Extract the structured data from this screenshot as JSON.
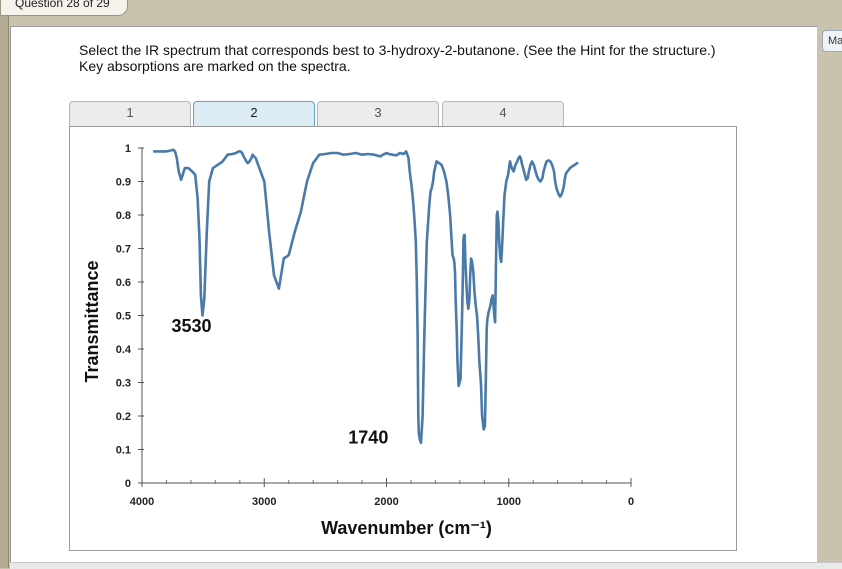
{
  "question_tab": {
    "label": "Question 28 of 29"
  },
  "side_button": {
    "label": "Ma"
  },
  "prompt": {
    "line1": "Select the IR spectrum that corresponds best to 3-hydroxy-2-butanone. (See the Hint for the structure.)",
    "line2": "Key absorptions are marked on the spectra."
  },
  "tabs": [
    {
      "label": "1",
      "active": false
    },
    {
      "label": "2",
      "active": true
    },
    {
      "label": "3",
      "active": false
    },
    {
      "label": "4",
      "active": false
    }
  ],
  "colors": {
    "trace": "#4a7aa8",
    "active_tab": "#dcecf5"
  },
  "chart_data": {
    "type": "line",
    "title": "",
    "xlabel": "Wavenumber (cm⁻¹)",
    "ylabel": "Transmittance",
    "xlim": [
      4000,
      0
    ],
    "ylim": [
      0,
      1
    ],
    "x_ticks": [
      "4000",
      "3000",
      "2000",
      "1000",
      "0"
    ],
    "y_ticks": [
      "0",
      "0.1",
      "0.2",
      "0.3",
      "0.4",
      "0.5",
      "0.6",
      "0.7",
      "0.8",
      "0.9",
      "1"
    ],
    "annotations": [
      {
        "text": "3530",
        "x": 3530,
        "y": 0.51
      },
      {
        "text": "1740",
        "x": 1740,
        "y": 0.13
      }
    ],
    "series": [
      {
        "x": [
          3900,
          3850,
          3800,
          3770,
          3745,
          3730,
          3715,
          3700,
          3680,
          3650,
          3620,
          3590,
          3565,
          3545,
          3530,
          3518,
          3505,
          3490,
          3470,
          3450,
          3420,
          3380,
          3340,
          3300,
          3260,
          3230,
          3210,
          3195,
          3180,
          3170,
          3160,
          3150,
          3135,
          3120,
          3105,
          3095,
          3085,
          3070,
          3060,
          3045,
          3030,
          3000,
          2960,
          2920,
          2880,
          2840,
          2800,
          2750,
          2700,
          2650,
          2600,
          2550,
          2500,
          2450,
          2400,
          2350,
          2300,
          2250,
          2200,
          2150,
          2100,
          2070,
          2050,
          2030,
          2015,
          2000,
          1980,
          1950,
          1920,
          1890,
          1860,
          1840,
          1830,
          1820,
          1810,
          1800,
          1790,
          1780,
          1770,
          1760,
          1752,
          1746,
          1742,
          1740,
          1736,
          1728,
          1718,
          1705,
          1690,
          1670,
          1650,
          1640,
          1630,
          1620,
          1610,
          1590,
          1570,
          1550,
          1530,
          1510,
          1495,
          1480,
          1470,
          1460,
          1450,
          1445,
          1440,
          1435,
          1425,
          1420,
          1410,
          1395,
          1385,
          1375,
          1370,
          1365,
          1360,
          1355,
          1345,
          1338,
          1330,
          1322,
          1315,
          1308,
          1300,
          1290,
          1280,
          1270,
          1260,
          1250,
          1240,
          1228,
          1218,
          1205,
          1195,
          1188,
          1180,
          1175,
          1165,
          1150,
          1140,
          1132,
          1125,
          1118,
          1112,
          1105,
          1098,
          1092,
          1085,
          1078,
          1072,
          1068,
          1062,
          1055,
          1045,
          1035,
          1020,
          1005,
          990,
          975,
          960,
          945,
          930,
          920,
          910,
          902,
          890,
          875,
          858,
          845,
          835,
          822,
          810,
          795,
          780,
          768,
          755,
          740,
          725,
          715,
          700,
          690,
          675,
          660,
          645,
          630,
          620,
          610,
          600,
          590,
          580,
          570,
          560,
          550,
          545,
          540,
          535,
          530,
          520,
          510,
          500,
          480,
          460,
          440
        ],
        "y": [
          0.99,
          0.99,
          0.99,
          0.992,
          0.995,
          0.99,
          0.97,
          0.93,
          0.905,
          0.94,
          0.94,
          0.93,
          0.92,
          0.85,
          0.73,
          0.56,
          0.5,
          0.55,
          0.75,
          0.9,
          0.94,
          0.95,
          0.96,
          0.98,
          0.982,
          0.985,
          0.99,
          0.99,
          0.985,
          0.975,
          0.97,
          0.962,
          0.955,
          0.96,
          0.97,
          0.98,
          0.975,
          0.97,
          0.96,
          0.945,
          0.93,
          0.9,
          0.75,
          0.62,
          0.58,
          0.67,
          0.68,
          0.75,
          0.81,
          0.9,
          0.955,
          0.98,
          0.982,
          0.985,
          0.985,
          0.98,
          0.982,
          0.985,
          0.98,
          0.982,
          0.98,
          0.977,
          0.975,
          0.98,
          0.982,
          0.985,
          0.982,
          0.98,
          0.978,
          0.985,
          0.982,
          0.99,
          0.98,
          0.97,
          0.93,
          0.9,
          0.87,
          0.83,
          0.78,
          0.72,
          0.6,
          0.45,
          0.3,
          0.2,
          0.15,
          0.13,
          0.12,
          0.2,
          0.45,
          0.72,
          0.83,
          0.87,
          0.88,
          0.9,
          0.93,
          0.96,
          0.955,
          0.95,
          0.93,
          0.9,
          0.86,
          0.8,
          0.74,
          0.68,
          0.67,
          0.66,
          0.63,
          0.55,
          0.45,
          0.37,
          0.29,
          0.31,
          0.45,
          0.62,
          0.73,
          0.74,
          0.74,
          0.66,
          0.58,
          0.54,
          0.52,
          0.55,
          0.62,
          0.67,
          0.66,
          0.63,
          0.57,
          0.53,
          0.5,
          0.44,
          0.36,
          0.3,
          0.2,
          0.16,
          0.17,
          0.3,
          0.46,
          0.49,
          0.51,
          0.53,
          0.55,
          0.56,
          0.53,
          0.5,
          0.48,
          0.64,
          0.8,
          0.81,
          0.78,
          0.72,
          0.69,
          0.67,
          0.66,
          0.7,
          0.78,
          0.86,
          0.9,
          0.92,
          0.96,
          0.94,
          0.93,
          0.95,
          0.96,
          0.97,
          0.975,
          0.97,
          0.95,
          0.93,
          0.905,
          0.91,
          0.93,
          0.95,
          0.96,
          0.95,
          0.93,
          0.915,
          0.905,
          0.9,
          0.91,
          0.93,
          0.95,
          0.96,
          0.963,
          0.96,
          0.95,
          0.93,
          0.9,
          0.88,
          0.87,
          0.86,
          0.855,
          0.86,
          0.87,
          0.885,
          0.9,
          0.91,
          0.92,
          0.925,
          0.93,
          0.935,
          0.94,
          0.945,
          0.95,
          0.955
        ]
      }
    ]
  }
}
